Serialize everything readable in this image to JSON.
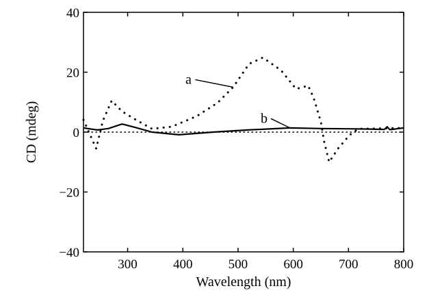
{
  "chart_data": {
    "type": "line",
    "title": "",
    "xlabel": "Wavelength (nm)",
    "ylabel": "CD (mdeg)",
    "xlim": [
      220,
      800
    ],
    "ylim": [
      -40,
      40
    ],
    "xticks": [
      300,
      400,
      500,
      600,
      700,
      800
    ],
    "yticks": [
      40,
      20,
      0,
      -20,
      -40
    ],
    "ytick_labels": [
      "40",
      "20",
      "0",
      "−20",
      "−40"
    ],
    "grid": false,
    "baseline": {
      "style": "dotted",
      "y": 0
    },
    "series": [
      {
        "name": "a",
        "style": "dotted",
        "color": "#000000",
        "x": [
          220,
          243,
          255,
          271,
          290,
          315,
          344,
          380,
          425,
          463,
          491,
          520,
          545,
          578,
          605,
          627,
          637,
          650,
          656,
          665,
          681,
          702,
          718,
          750,
          800
        ],
        "y": [
          4.1,
          -5.5,
          3.7,
          10.5,
          6.9,
          4.1,
          1.1,
          1.8,
          5.3,
          9.8,
          15,
          22.8,
          24.9,
          20.6,
          14.4,
          15.5,
          11.4,
          3.4,
          -3.2,
          -10,
          -5.5,
          -1,
          1.1,
          1.2,
          1.4
        ]
      },
      {
        "name": "b",
        "style": "solid",
        "color": "#000000",
        "x": [
          220,
          245,
          265,
          290,
          315,
          344,
          393,
          455,
          517,
          594,
          650,
          702,
          740,
          765,
          770,
          775,
          800
        ],
        "y": [
          1.4,
          0.7,
          1.2,
          2.7,
          1.5,
          0,
          -0.9,
          0,
          0.7,
          1.4,
          1.2,
          1.1,
          1.0,
          0.9,
          1.8,
          0.8,
          1.4
        ]
      }
    ],
    "annotations": [
      {
        "text": "a",
        "x": 425,
        "y": 17.5,
        "points_to": [
          491,
          15
        ]
      },
      {
        "text": "b",
        "x": 562,
        "y": 4.5,
        "points_to": [
          594,
          1.4
        ]
      }
    ]
  }
}
